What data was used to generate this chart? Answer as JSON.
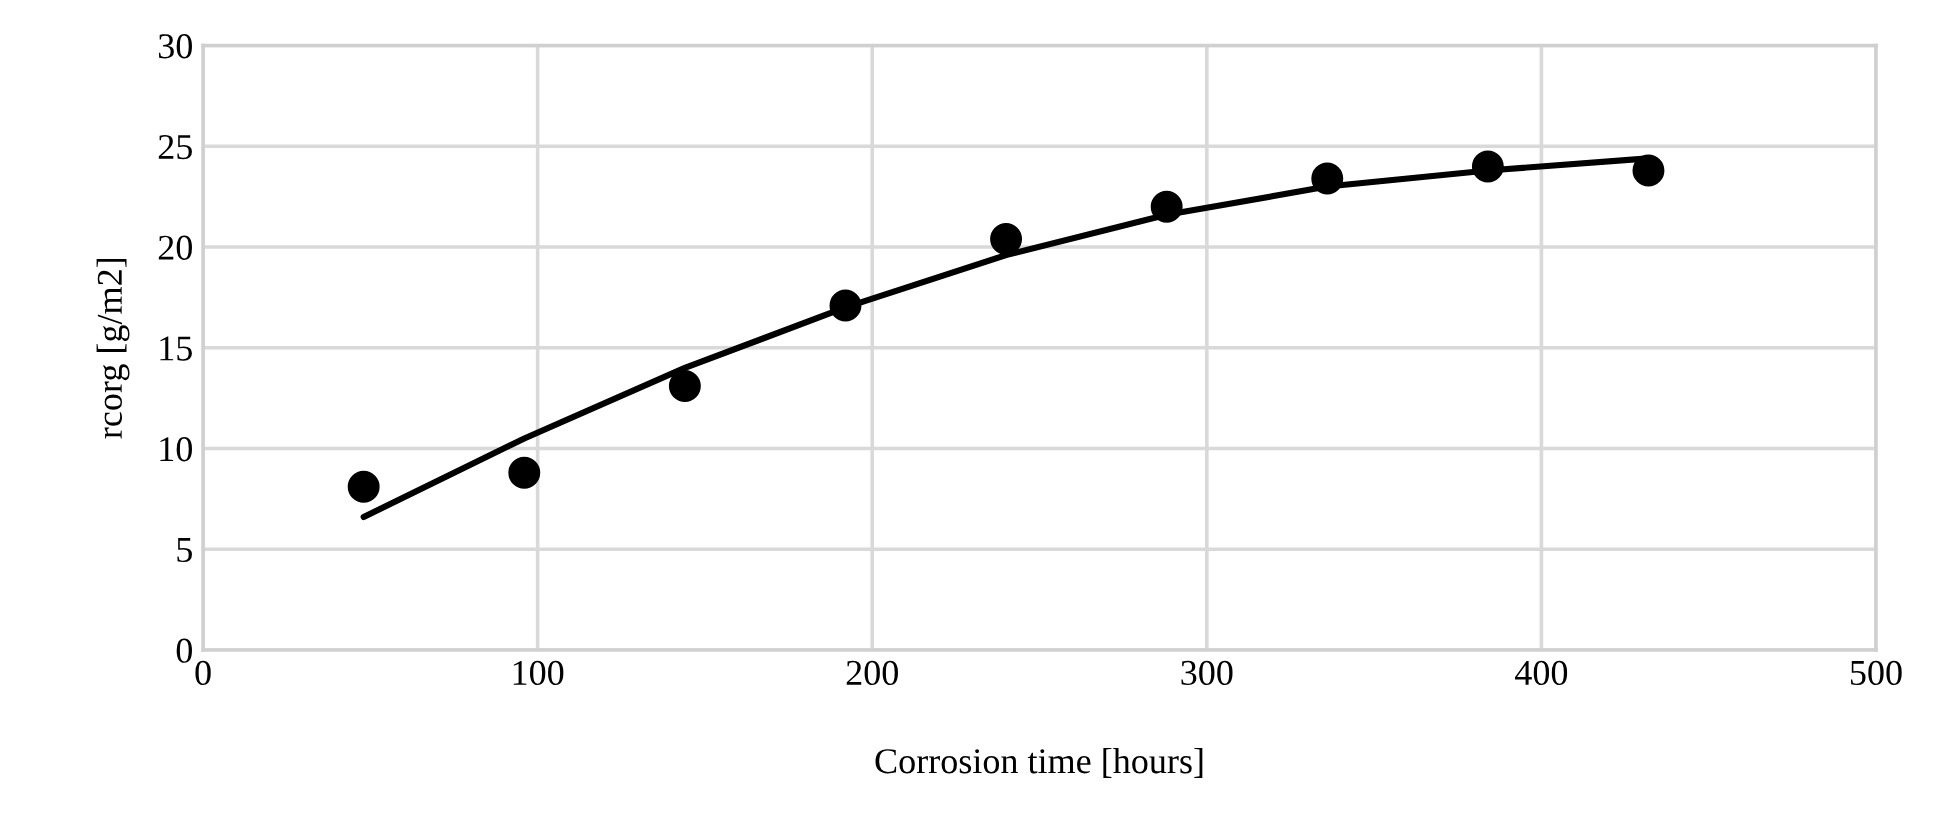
{
  "chart_data": {
    "type": "scatter",
    "xlabel": "Corrosion time [hours]",
    "ylabel": "rcorg [g/m2]",
    "xlim": [
      0,
      500
    ],
    "xticks": [
      0,
      100,
      200,
      300,
      400,
      500
    ],
    "ylim": [
      0,
      30
    ],
    "yticks": [
      0,
      5,
      10,
      15,
      20,
      25,
      30
    ],
    "grid": true,
    "marker": "circle",
    "series": [
      {
        "color": "#000000",
        "x": [
          48,
          96,
          144,
          192,
          240,
          288,
          336,
          384,
          432
        ],
        "values": [
          8.1,
          8.8,
          13.1,
          17.1,
          20.4,
          22.0,
          23.4,
          24.0,
          23.8
        ]
      },
      {
        "type": "line",
        "color": "#000000",
        "marker": "none",
        "line_style": "solid",
        "x": [
          48,
          96,
          144,
          192,
          240,
          288,
          336,
          384,
          432
        ],
        "values": [
          6.6,
          10.5,
          14.0,
          17.0,
          19.6,
          21.6,
          23.0,
          23.8,
          24.4
        ]
      }
    ]
  }
}
